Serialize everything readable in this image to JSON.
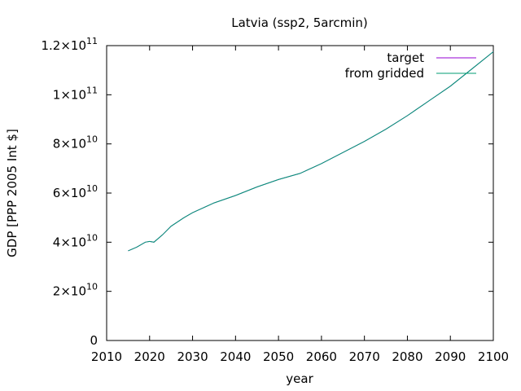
{
  "chart_data": {
    "type": "line",
    "title": "Latvia (ssp2, 5arcmin)",
    "xlabel": "year",
    "ylabel": "GDP [PPP 2005 Int $]",
    "xlim": [
      2010,
      2100
    ],
    "ylim": [
      0,
      120000000000
    ],
    "x_ticks": [
      2010,
      2020,
      2030,
      2040,
      2050,
      2060,
      2070,
      2080,
      2090,
      2100
    ],
    "y_ticks": [
      {
        "value": 0,
        "mantissa": "0",
        "exp": ""
      },
      {
        "value": 20000000000,
        "mantissa": "2×10",
        "exp": "10"
      },
      {
        "value": 40000000000,
        "mantissa": "4×10",
        "exp": "10"
      },
      {
        "value": 60000000000,
        "mantissa": "6×10",
        "exp": "10"
      },
      {
        "value": 80000000000,
        "mantissa": "8×10",
        "exp": "10"
      },
      {
        "value": 100000000000,
        "mantissa": "1×10",
        "exp": "11"
      },
      {
        "value": 120000000000,
        "mantissa": "1.2×10",
        "exp": "11"
      }
    ],
    "grid": false,
    "legend_position": "top-right",
    "series": [
      {
        "name": "target",
        "color": "#9400d3",
        "x": [
          2015,
          2017,
          2019,
          2020,
          2021,
          2023,
          2025,
          2028,
          2030,
          2035,
          2040,
          2045,
          2050,
          2055,
          2060,
          2065,
          2070,
          2075,
          2080,
          2085,
          2090,
          2095,
          2100
        ],
        "y": [
          36500000000,
          38000000000,
          40000000000,
          40300000000,
          40000000000,
          43000000000,
          46500000000,
          50000000000,
          52000000000,
          56000000000,
          59000000000,
          62500000000,
          65500000000,
          68000000000,
          72000000000,
          76500000000,
          81000000000,
          86000000000,
          91500000000,
          97500000000,
          103500000000,
          110500000000,
          117500000000
        ]
      },
      {
        "name": "from gridded",
        "color": "#009e73",
        "x": [
          2015,
          2017,
          2019,
          2020,
          2021,
          2023,
          2025,
          2028,
          2030,
          2035,
          2040,
          2045,
          2050,
          2055,
          2060,
          2065,
          2070,
          2075,
          2080,
          2085,
          2090,
          2095,
          2100
        ],
        "y": [
          36500000000,
          38000000000,
          40000000000,
          40300000000,
          40000000000,
          43000000000,
          46500000000,
          50000000000,
          52000000000,
          56000000000,
          59000000000,
          62500000000,
          65500000000,
          68000000000,
          72000000000,
          76500000000,
          81000000000,
          86000000000,
          91500000000,
          97500000000,
          103500000000,
          110500000000,
          117500000000
        ]
      }
    ]
  }
}
